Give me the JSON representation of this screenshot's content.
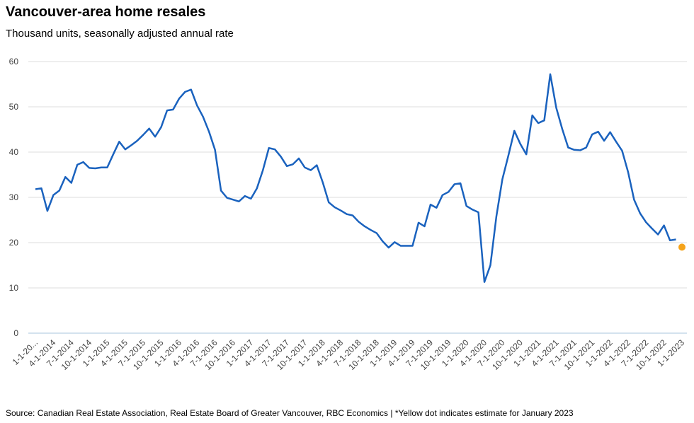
{
  "chart_data": {
    "type": "line",
    "title": "Vancouver-area home resales",
    "subtitle": "Thousand units, seasonally adjusted annual rate",
    "source": "Source: Canadian Real Estate Association, Real Estate Board of Greater Vancouver, RBC Economics | *Yellow dot indicates estimate for January 2023",
    "categories": [
      "1-1-20...",
      null,
      null,
      "4-1-2014",
      null,
      null,
      "7-1-2014",
      null,
      null,
      "10-1-2014",
      null,
      null,
      "1-1-2015",
      null,
      null,
      "4-1-2015",
      null,
      null,
      "7-1-2015",
      null,
      null,
      "10-1-2015",
      null,
      null,
      "1-1-2016",
      null,
      null,
      "4-1-2016",
      null,
      null,
      "7-1-2016",
      null,
      null,
      "10-1-2016",
      null,
      null,
      "1-1-2017",
      null,
      null,
      "4-1-2017",
      null,
      null,
      "7-1-2017",
      null,
      null,
      "10-1-2017",
      null,
      null,
      "1-1-2018",
      null,
      null,
      "4-1-2018",
      null,
      null,
      "7-1-2018",
      null,
      null,
      "10-1-2018",
      null,
      null,
      "1-1-2019",
      null,
      null,
      "4-1-2019",
      null,
      null,
      "7-1-2019",
      null,
      null,
      "10-1-2019",
      null,
      null,
      "1-1-2020",
      null,
      null,
      "4-1-2020",
      null,
      null,
      "7-1-2020",
      null,
      null,
      "10-1-2020",
      null,
      null,
      "1-1-2021",
      null,
      null,
      "4-1-2021",
      null,
      null,
      "7-1-2021",
      null,
      null,
      "10-1-2021",
      null,
      null,
      "1-1-2022",
      null,
      null,
      "4-1-2022",
      null,
      null,
      "7-1-2022",
      null,
      null,
      "10-1-2022",
      null,
      null,
      "1-1-2023"
    ],
    "series": [
      {
        "color": "#1a62be",
        "values": [
          31.8,
          32,
          27,
          30.5,
          31.5,
          34.5,
          33.2,
          37.2,
          37.8,
          36.5,
          36.4,
          36.6,
          36.6,
          39.5,
          42.3,
          40.6,
          41.5,
          42.5,
          43.8,
          45.2,
          43.4,
          45.5,
          49.2,
          49.4,
          51.8,
          53.3,
          53.8,
          50.3,
          47.8,
          44.5,
          40.5,
          31.5,
          29.9,
          29.5,
          29.1,
          30.3,
          29.7,
          32,
          36,
          40.9,
          40.6,
          39,
          36.9,
          37.3,
          38.6,
          36.6,
          36,
          37.1,
          33.3,
          28.9,
          27.8,
          27.1,
          26.3,
          26,
          24.6,
          23.6,
          22.8,
          22.1,
          20.3,
          18.9,
          20.1,
          19.3,
          19.3,
          19.3,
          24.4,
          23.6,
          28.4,
          27.7,
          30.5,
          31.2,
          32.9,
          33.1,
          28.1,
          27.3,
          26.7,
          11.3,
          15,
          25.8,
          34,
          39.2,
          44.7,
          41.8,
          39.5,
          48.1,
          46.4,
          47,
          57.2,
          49.8,
          45.1,
          41,
          40.5,
          40.4,
          41,
          43.9,
          44.5,
          42.5,
          44.4,
          42.3,
          40.3,
          35.6,
          29.5,
          26.5,
          24.5,
          23.1,
          21.8,
          23.8,
          20.5,
          20.7,
          null
        ]
      },
      {
        "color": "#f5a31a",
        "values": [
          null,
          null,
          null,
          null,
          null,
          null,
          null,
          null,
          null,
          null,
          null,
          null,
          null,
          null,
          null,
          null,
          null,
          null,
          null,
          null,
          null,
          null,
          null,
          null,
          null,
          null,
          null,
          null,
          null,
          null,
          null,
          null,
          null,
          null,
          null,
          null,
          null,
          null,
          null,
          null,
          null,
          null,
          null,
          null,
          null,
          null,
          null,
          null,
          null,
          null,
          null,
          null,
          null,
          null,
          null,
          null,
          null,
          null,
          null,
          null,
          null,
          null,
          null,
          null,
          null,
          null,
          null,
          null,
          null,
          null,
          null,
          null,
          null,
          null,
          null,
          null,
          null,
          null,
          null,
          null,
          null,
          null,
          null,
          null,
          null,
          null,
          null,
          null,
          null,
          null,
          null,
          null,
          null,
          null,
          null,
          null,
          null,
          null,
          null,
          null,
          null,
          null,
          null,
          null,
          null,
          null,
          null,
          null,
          19
        ]
      }
    ],
    "ylim": [
      0,
      60
    ],
    "yticks": [
      0,
      10,
      20,
      30,
      40,
      50,
      60
    ],
    "grid": true
  }
}
